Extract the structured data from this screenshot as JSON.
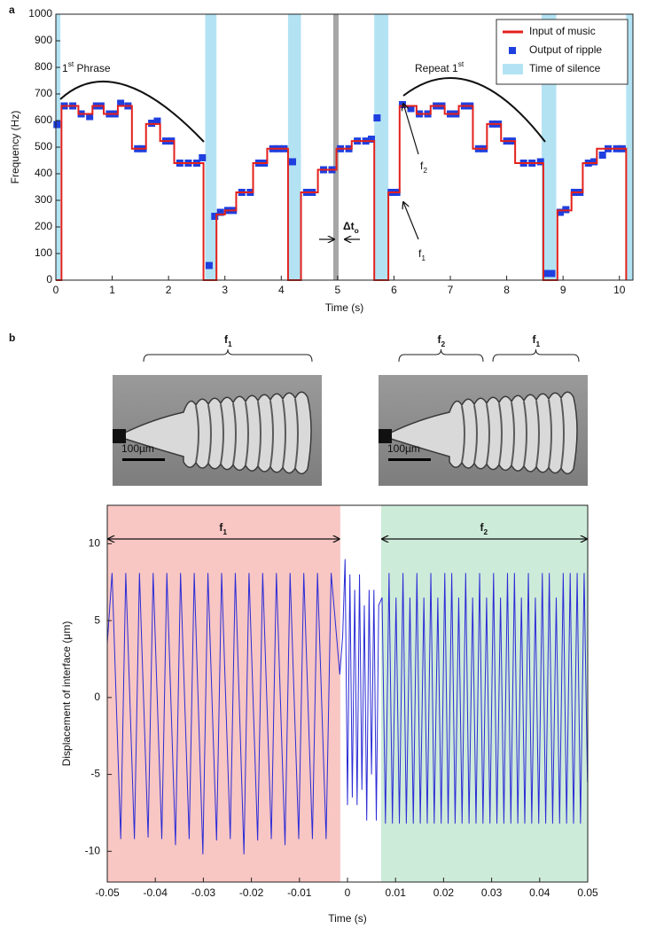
{
  "chart_data": [
    {
      "type": "line",
      "panel_label": "a",
      "xlabel": "Time (s)",
      "ylabel": "Frequency (Hz)",
      "xlim": [
        0,
        10.24
      ],
      "ylim": [
        0,
        1000
      ],
      "xticks": [
        0,
        1,
        2,
        3,
        4,
        5,
        6,
        7,
        8,
        9,
        10
      ],
      "yticks": [
        0,
        100,
        200,
        300,
        400,
        500,
        600,
        700,
        800,
        900,
        1000
      ],
      "legend": "upper right",
      "series": [
        {
          "name": "Input of music",
          "color": "#e3211c",
          "drawstyle": "steps-post",
          "x": [
            0,
            0.1,
            0.4,
            0.65,
            0.85,
            1.1,
            1.35,
            1.6,
            1.85,
            2.1,
            2.62,
            2.85,
            3.0,
            3.2,
            3.5,
            3.75,
            4.12,
            4.35,
            4.65,
            4.98,
            5.25,
            5.65,
            5.9,
            6.1,
            6.4,
            6.65,
            6.9,
            7.15,
            7.4,
            7.65,
            7.9,
            8.15,
            8.65,
            8.9,
            9.15,
            9.35,
            9.6,
            10.12
          ],
          "values": [
            0,
            655,
            625,
            655,
            625,
            655,
            494,
            587,
            523,
            440,
            0,
            247,
            262,
            330,
            440,
            494,
            0,
            330,
            415,
            494,
            523,
            0,
            330,
            655,
            625,
            655,
            625,
            655,
            494,
            587,
            523,
            440,
            0,
            262,
            330,
            440,
            494,
            0
          ]
        },
        {
          "name": "Output of ripple",
          "color": "#1f3fdf",
          "marker": "square",
          "x": [
            0.02,
            0.15,
            0.3,
            0.45,
            0.6,
            0.72,
            0.8,
            0.95,
            1.05,
            1.15,
            1.28,
            1.45,
            1.55,
            1.7,
            1.8,
            1.95,
            2.05,
            2.2,
            2.35,
            2.5,
            2.6,
            2.72,
            2.82,
            2.92,
            3.05,
            3.15,
            3.3,
            3.45,
            3.6,
            3.7,
            3.85,
            3.95,
            4.05,
            4.2,
            4.45,
            4.55,
            4.75,
            4.9,
            5.05,
            5.2,
            5.35,
            5.5,
            5.6,
            5.7,
            5.95,
            6.05,
            6.15,
            6.3,
            6.45,
            6.6,
            6.75,
            6.85,
            7.0,
            7.1,
            7.25,
            7.35,
            7.5,
            7.6,
            7.75,
            7.85,
            8.0,
            8.1,
            8.3,
            8.45,
            8.6,
            8.7,
            8.8,
            8.95,
            9.05,
            9.2,
            9.3,
            9.45,
            9.55,
            9.7,
            9.8,
            9.95,
            10.05
          ],
          "values": [
            585,
            655,
            655,
            625,
            615,
            655,
            655,
            625,
            625,
            665,
            655,
            494,
            494,
            590,
            598,
            523,
            523,
            440,
            440,
            440,
            460,
            55,
            240,
            255,
            262,
            262,
            330,
            330,
            440,
            440,
            494,
            494,
            494,
            445,
            330,
            330,
            415,
            415,
            494,
            494,
            523,
            523,
            530,
            610,
            330,
            330,
            660,
            645,
            625,
            625,
            655,
            655,
            625,
            625,
            655,
            655,
            494,
            494,
            587,
            587,
            523,
            523,
            440,
            440,
            445,
            25,
            25,
            255,
            265,
            330,
            330,
            440,
            445,
            470,
            494,
            494,
            494
          ]
        }
      ],
      "bands": {
        "name": "Time of silence",
        "color": "#b3e3f3",
        "ranges": [
          [
            0,
            0.08
          ],
          [
            2.65,
            2.85
          ],
          [
            4.12,
            4.35
          ],
          [
            5.65,
            5.9
          ],
          [
            8.62,
            8.88
          ],
          [
            10.12,
            10.24
          ]
        ]
      },
      "vline": {
        "x": 4.97,
        "color": "#a6a6a6"
      },
      "annotations": [
        {
          "text": "1",
          "sup": "st",
          "tail": " Phrase"
        },
        {
          "text": "Repeat 1",
          "sup": "st"
        },
        {
          "text": "f",
          "sub": "2"
        },
        {
          "text": "f",
          "sub": "1"
        },
        {
          "text": "Δt",
          "sub": "o"
        }
      ]
    },
    {
      "type": "line",
      "panel_label": "b",
      "xlabel": "Time (s)",
      "ylabel": "Displacement of interface (μm)",
      "xlim": [
        -0.05,
        0.05
      ],
      "ylim": [
        -12,
        12.5
      ],
      "xticks": [
        -0.05,
        -0.04,
        -0.03,
        -0.02,
        -0.01,
        0,
        0.01,
        0.02,
        0.03,
        0.04,
        0.05
      ],
      "yticks": [
        -10,
        -5,
        0,
        5,
        10
      ],
      "images": [
        {
          "scale_bar": "100µm",
          "brackets": [
            {
              "text": "f",
              "sub": "1"
            }
          ]
        },
        {
          "scale_bar": "100µm",
          "brackets": [
            {
              "text": "f",
              "sub": "2"
            },
            {
              "text": "f",
              "sub": "1"
            }
          ]
        }
      ],
      "regions": [
        {
          "x0": -0.05,
          "x1": -0.0015,
          "color": "#f8c6c3",
          "label": {
            "text": "f",
            "sub": "1"
          }
        },
        {
          "x0": 0.007,
          "x1": 0.05,
          "color": "#cdebd9",
          "label": {
            "text": "f",
            "sub": "2"
          }
        }
      ],
      "series": [
        {
          "color": "#2b2bd6",
          "x": [
            -0.05,
            -0.049,
            -0.0472,
            -0.04615,
            -0.04435,
            -0.0433,
            -0.0415,
            -0.04045,
            -0.03865,
            -0.0376,
            -0.0358,
            -0.03475,
            -0.03295,
            -0.0319,
            -0.0301,
            -0.02905,
            -0.02725,
            -0.0262,
            -0.0244,
            -0.02335,
            -0.02155,
            -0.0205,
            -0.0187,
            -0.01765,
            -0.01585,
            -0.0148,
            -0.013,
            -0.01195,
            -0.01015,
            -0.0091,
            -0.0073,
            -0.00625,
            -0.00445,
            -0.0034,
            -0.0016,
            -0.001,
            -0.0005,
            0,
            0.0005,
            0.001,
            0.0015,
            0.002,
            0.0025,
            0.003,
            0.0035,
            0.004,
            0.0045,
            0.005,
            0.0055,
            0.006,
            0.0065,
            0.0072,
            0.0079,
            0.00865,
            0.00935,
            0.0101,
            0.0108,
            0.01155,
            0.01225,
            0.013,
            0.0137,
            0.01445,
            0.01515,
            0.0159,
            0.0166,
            0.01735,
            0.01805,
            0.0188,
            0.0195,
            0.02025,
            0.02095,
            0.0217,
            0.0224,
            0.02315,
            0.02385,
            0.0246,
            0.0253,
            0.02605,
            0.02675,
            0.0275,
            0.0282,
            0.02895,
            0.02965,
            0.0304,
            0.0311,
            0.03185,
            0.03255,
            0.0333,
            0.034,
            0.03475,
            0.03545,
            0.0362,
            0.0369,
            0.03765,
            0.03835,
            0.0391,
            0.0398,
            0.04055,
            0.04125,
            0.042,
            0.0427,
            0.04345,
            0.04415,
            0.0449,
            0.0456,
            0.04635,
            0.04705,
            0.0478,
            0.0485,
            0.04925,
            0.04995
          ],
          "values": [
            3.5,
            8.1,
            -9.2,
            8.1,
            -9.2,
            8.1,
            -9.1,
            8.1,
            -9.2,
            8.1,
            -9.6,
            8.1,
            -9.2,
            8.1,
            -10.2,
            8.1,
            -9.3,
            8.1,
            -9.2,
            8.1,
            -10.2,
            8.1,
            -9.3,
            8.1,
            -9.2,
            8.1,
            -9.6,
            8.1,
            -9.2,
            8.1,
            -9.2,
            8.1,
            -9.2,
            8.1,
            1.5,
            4,
            9,
            -7,
            8,
            -6.5,
            7,
            -7,
            8,
            -6,
            6,
            -8,
            7,
            -5,
            7,
            -8,
            6,
            6.5,
            -8.2,
            8.1,
            -8.2,
            6.5,
            -8.2,
            8.1,
            -8.2,
            6.5,
            -8.2,
            8.1,
            -8.2,
            6.5,
            -8.2,
            8.1,
            -8.2,
            6.5,
            -8.2,
            8.1,
            -8.2,
            8.1,
            -8.2,
            6.5,
            -8.2,
            8.1,
            -8.2,
            6.5,
            -8.2,
            8.1,
            -8.2,
            6.5,
            -8.2,
            8.1,
            -8.2,
            6.5,
            -8.2,
            8.1,
            -8.2,
            8.1,
            -8.2,
            6.5,
            -8.2,
            8.1,
            -8.2,
            6.5,
            -8.2,
            8.1,
            -8.2,
            8.1,
            -8.2,
            6.5,
            -8.2,
            8.1,
            -8.2,
            8.1,
            -8.2,
            8.1,
            -8.2,
            8.1,
            -5.5
          ]
        }
      ]
    }
  ]
}
